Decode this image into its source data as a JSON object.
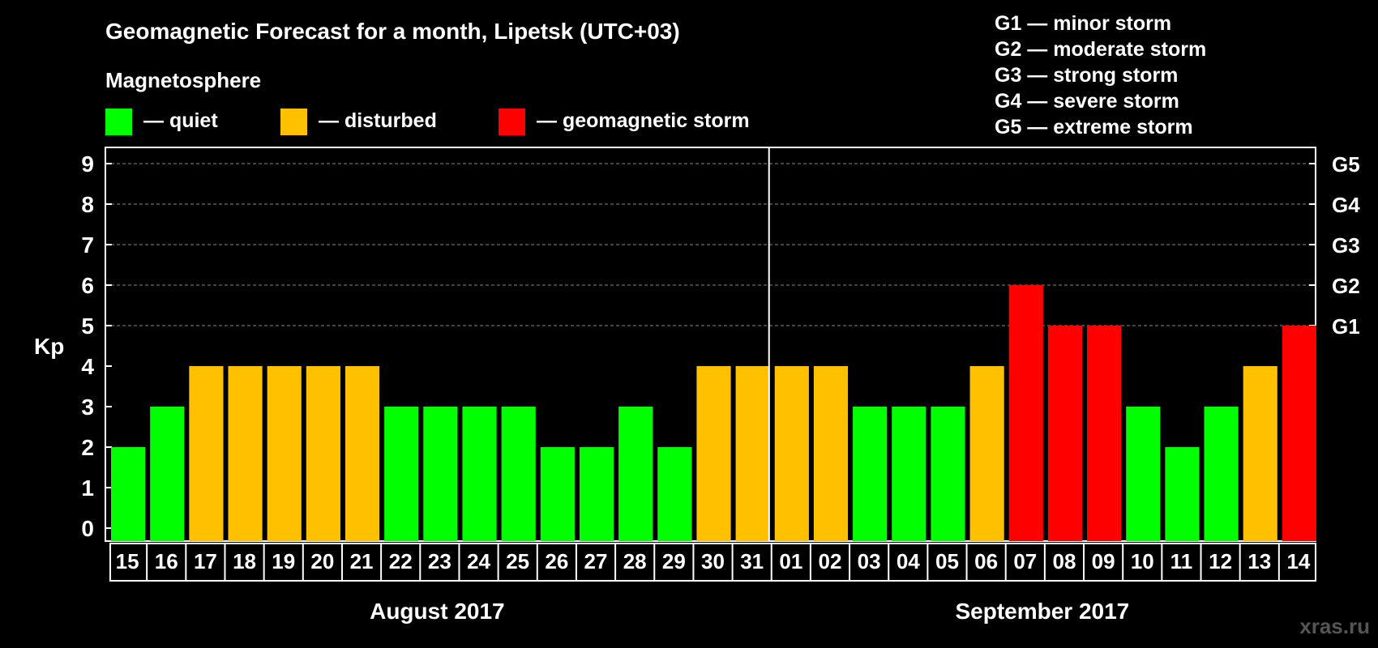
{
  "title": "Geomagnetic Forecast for a month, Lipetsk (UTC+03)",
  "magnetosphere_label": "Magnetosphere",
  "legend": [
    {
      "label": "— quiet",
      "color": "#00ff00"
    },
    {
      "label": "— disturbed",
      "color": "#ffc000"
    },
    {
      "label": "— geomagnetic storm",
      "color": "#ff0000"
    }
  ],
  "storm_scale": [
    "G1 — minor storm",
    "G2 — moderate storm",
    "G3 — strong storm",
    "G4 — severe storm",
    "G5 — extreme storm"
  ],
  "watermark": "xras.ru",
  "colors": {
    "quiet": "#00ff00",
    "disturbed": "#ffc000",
    "storm": "#ff0000",
    "background": "#000000",
    "grid": "#888888"
  },
  "chart_data": {
    "type": "bar",
    "ylabel": "Kp",
    "ylim": [
      0,
      9
    ],
    "yticks": [
      "0",
      "1",
      "2",
      "3",
      "4",
      "5",
      "6",
      "7",
      "8",
      "9"
    ],
    "right_ticks": [
      {
        "value": 5,
        "label": "G1"
      },
      {
        "value": 6,
        "label": "G2"
      },
      {
        "value": 7,
        "label": "G3"
      },
      {
        "value": 8,
        "label": "G4"
      },
      {
        "value": 9,
        "label": "G5"
      }
    ],
    "grid": "dashed horizontal at Kp 5–9",
    "categories": [
      "15",
      "16",
      "17",
      "18",
      "19",
      "20",
      "21",
      "22",
      "23",
      "24",
      "25",
      "26",
      "27",
      "28",
      "29",
      "30",
      "31",
      "01",
      "02",
      "03",
      "04",
      "05",
      "06",
      "07",
      "08",
      "09",
      "10",
      "11",
      "12",
      "13",
      "14"
    ],
    "values": [
      2,
      3,
      4,
      4,
      4,
      4,
      4,
      3,
      3,
      3,
      3,
      2,
      2,
      3,
      2,
      4,
      4,
      4,
      4,
      3,
      3,
      3,
      4,
      6,
      5,
      5,
      3,
      2,
      3,
      4,
      5
    ],
    "months": [
      {
        "label": "August 2017",
        "count": 17
      },
      {
        "label": "September 2017",
        "count": 14
      }
    ]
  }
}
